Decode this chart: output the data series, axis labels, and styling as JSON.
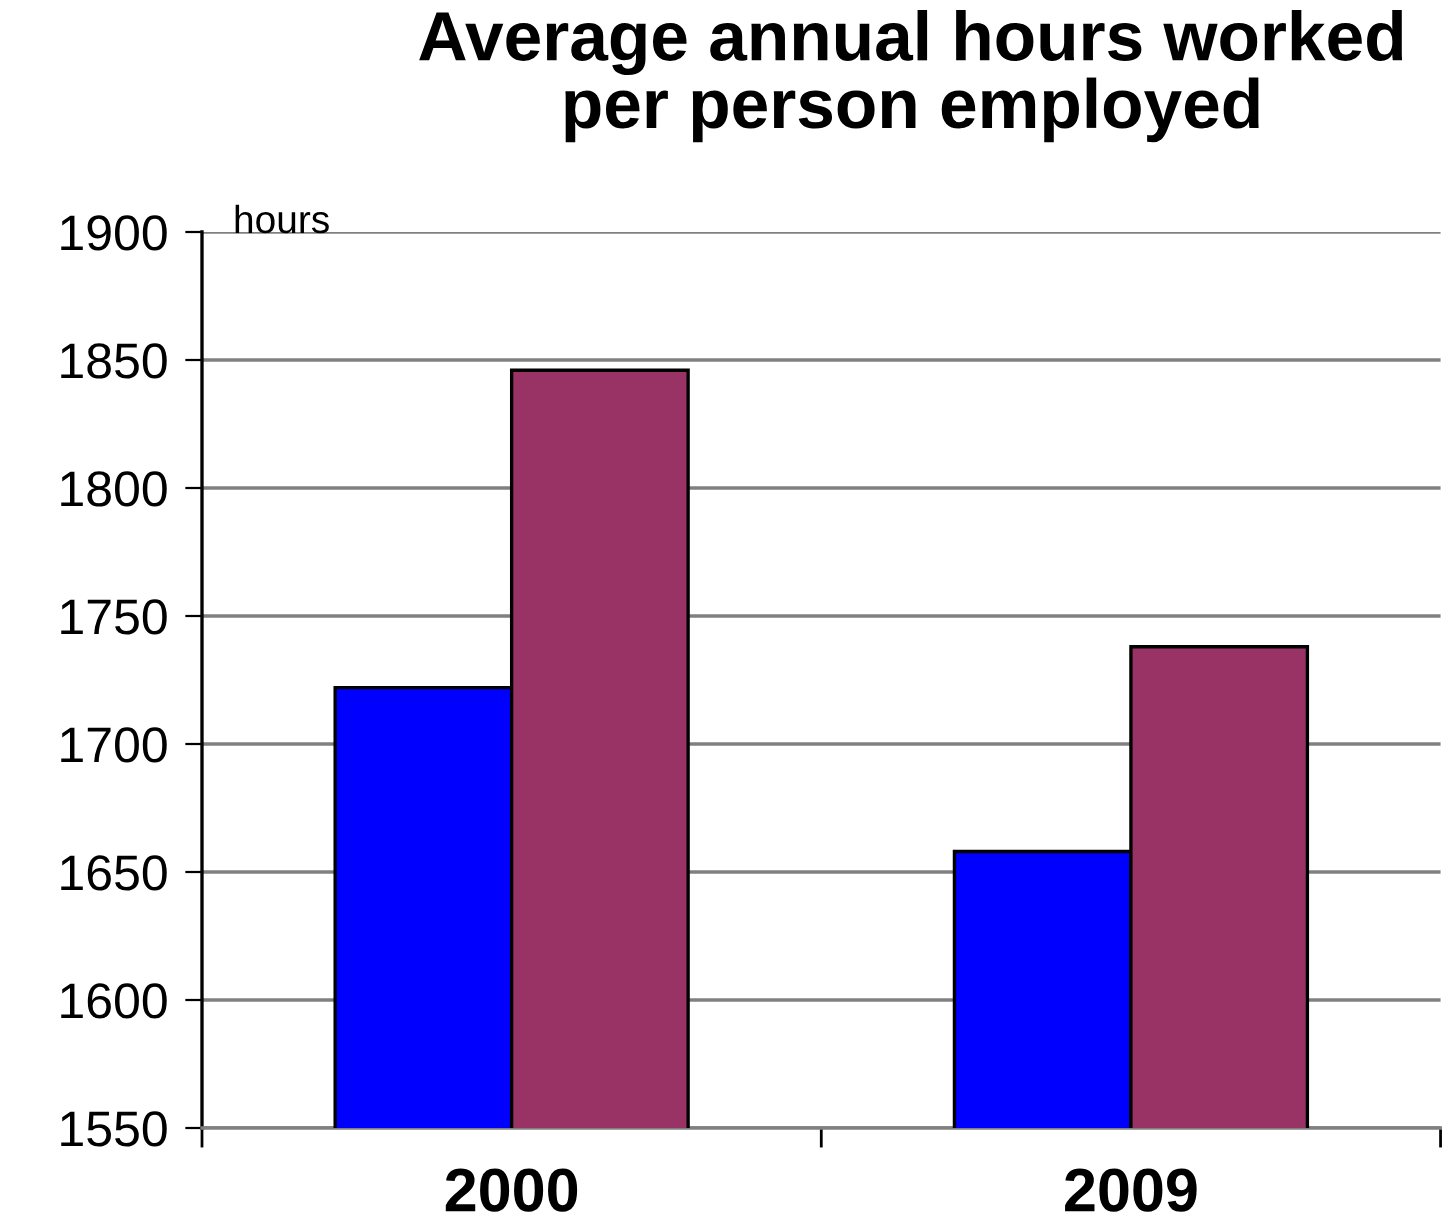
{
  "chart_data": {
    "type": "bar",
    "title": "Average annual hours worked\nper person employed",
    "ylabel": "hours",
    "categories": [
      "2000",
      "2009"
    ],
    "series": [
      {
        "color": "#0000ff",
        "values": [
          1722,
          1658
        ]
      },
      {
        "color": "#993366",
        "values": [
          1846,
          1738
        ]
      }
    ],
    "ylim": [
      1550,
      1900
    ],
    "yticks": [
      1550,
      1600,
      1650,
      1700,
      1750,
      1800,
      1850,
      1900
    ],
    "grid": "y"
  }
}
